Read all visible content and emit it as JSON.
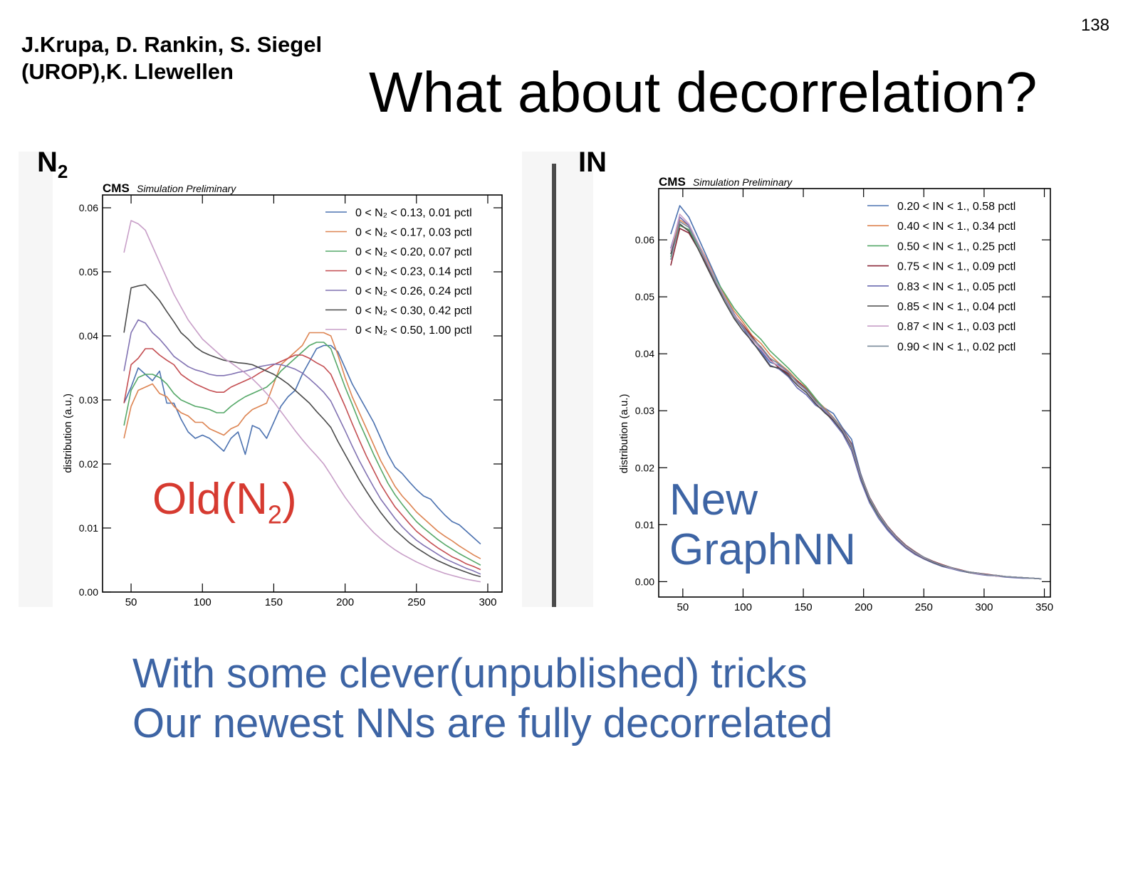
{
  "page_number": "138",
  "authors": [
    "J.Krupa, D. Rankin, S. Siegel",
    "(UROP),K. Llewellen"
  ],
  "title": "What about decorrelation?",
  "left_panel": {
    "label_main": "N",
    "label_sub": "2",
    "caption_main": "Old(N",
    "caption_sub": "2",
    "caption_end": ")"
  },
  "right_panel": {
    "label": "IN",
    "caption": [
      "New",
      "GraphNN"
    ]
  },
  "bottom_text": [
    "With some clever(unpublished) tricks",
    "Our newest NNs are fully decorrelated"
  ],
  "chart_data": [
    {
      "type": "line",
      "header_bold": "CMS",
      "header_italic": "Simulation Preliminary",
      "ylabel": "distribution (a.u.)",
      "xlabel": "",
      "xlim": [
        30,
        310
      ],
      "ylim": [
        0,
        0.062
      ],
      "xticks": [
        50,
        100,
        150,
        200,
        250,
        300
      ],
      "yticks": [
        0.0,
        0.01,
        0.02,
        0.03,
        0.04,
        0.05,
        0.06
      ],
      "ytick_labels": [
        "0.00",
        "0.01",
        "0.02",
        "0.03",
        "0.04",
        "0.05",
        "0.06"
      ],
      "legend_position": "top-right",
      "x": [
        45,
        50,
        55,
        60,
        65,
        70,
        75,
        80,
        85,
        90,
        95,
        100,
        105,
        110,
        115,
        120,
        125,
        130,
        135,
        140,
        145,
        150,
        155,
        160,
        165,
        170,
        175,
        180,
        185,
        190,
        195,
        200,
        205,
        210,
        215,
        220,
        225,
        230,
        235,
        240,
        245,
        250,
        255,
        260,
        265,
        270,
        275,
        280,
        285,
        290,
        295
      ],
      "series": [
        {
          "name": "0 < N₂ < 0.13, 0.01 pctl",
          "color": "#4c72b0",
          "values": [
            0.0295,
            0.032,
            0.035,
            0.034,
            0.033,
            0.0345,
            0.0295,
            0.0295,
            0.027,
            0.025,
            0.024,
            0.0245,
            0.024,
            0.023,
            0.022,
            0.024,
            0.025,
            0.0215,
            0.026,
            0.0255,
            0.024,
            0.0265,
            0.029,
            0.0305,
            0.0315,
            0.034,
            0.036,
            0.038,
            0.0385,
            0.0385,
            0.0375,
            0.035,
            0.0325,
            0.0305,
            0.0285,
            0.0265,
            0.024,
            0.0215,
            0.0195,
            0.0185,
            0.0172,
            0.016,
            0.015,
            0.0145,
            0.0132,
            0.012,
            0.011,
            0.0105,
            0.0095,
            0.0085,
            0.0075
          ]
        },
        {
          "name": "0 < N₂ < 0.17, 0.03 pctl",
          "color": "#dd8452",
          "values": [
            0.024,
            0.029,
            0.0315,
            0.032,
            0.0325,
            0.031,
            0.0305,
            0.029,
            0.028,
            0.0275,
            0.0265,
            0.0265,
            0.0255,
            0.025,
            0.0245,
            0.0255,
            0.026,
            0.0275,
            0.0285,
            0.029,
            0.0295,
            0.0325,
            0.0355,
            0.0365,
            0.0375,
            0.0385,
            0.0405,
            0.0405,
            0.0405,
            0.04,
            0.037,
            0.0335,
            0.0305,
            0.028,
            0.0255,
            0.023,
            0.0205,
            0.0185,
            0.0165,
            0.015,
            0.0138,
            0.0125,
            0.0115,
            0.0105,
            0.0095,
            0.0087,
            0.008,
            0.0072,
            0.0065,
            0.0058,
            0.0052
          ]
        },
        {
          "name": "0 < N₂ < 0.20, 0.07 pctl",
          "color": "#55a868",
          "values": [
            0.026,
            0.0315,
            0.0335,
            0.034,
            0.034,
            0.0335,
            0.0325,
            0.031,
            0.03,
            0.0295,
            0.029,
            0.0288,
            0.0285,
            0.028,
            0.028,
            0.029,
            0.0298,
            0.0305,
            0.031,
            0.0315,
            0.032,
            0.033,
            0.0345,
            0.0355,
            0.0365,
            0.0375,
            0.0385,
            0.039,
            0.039,
            0.038,
            0.035,
            0.032,
            0.0293,
            0.0265,
            0.024,
            0.0215,
            0.0192,
            0.017,
            0.0152,
            0.0137,
            0.0123,
            0.011,
            0.01,
            0.0091,
            0.0082,
            0.0074,
            0.0067,
            0.006,
            0.0054,
            0.0048,
            0.0042
          ]
        },
        {
          "name": "0 < N₂ < 0.23, 0.14 pctl",
          "color": "#c44e52",
          "values": [
            0.0295,
            0.0355,
            0.0365,
            0.038,
            0.038,
            0.037,
            0.0362,
            0.0355,
            0.034,
            0.0332,
            0.0325,
            0.032,
            0.0315,
            0.0312,
            0.0312,
            0.032,
            0.0325,
            0.033,
            0.0335,
            0.0342,
            0.0348,
            0.0355,
            0.036,
            0.0365,
            0.037,
            0.037,
            0.0365,
            0.0358,
            0.0352,
            0.034,
            0.0315,
            0.029,
            0.0263,
            0.0237,
            0.0212,
            0.019,
            0.0168,
            0.015,
            0.0133,
            0.012,
            0.0107,
            0.0095,
            0.0086,
            0.0077,
            0.0069,
            0.0062,
            0.0055,
            0.005,
            0.0044,
            0.004,
            0.0035
          ]
        },
        {
          "name": "0 < N₂ < 0.26, 0.24 pctl",
          "color": "#8172b2",
          "values": [
            0.0345,
            0.0405,
            0.0425,
            0.042,
            0.0405,
            0.0395,
            0.0382,
            0.0368,
            0.036,
            0.0352,
            0.0347,
            0.0344,
            0.034,
            0.0338,
            0.0338,
            0.034,
            0.0343,
            0.0345,
            0.0348,
            0.0352,
            0.0354,
            0.0356,
            0.0355,
            0.0352,
            0.0348,
            0.0342,
            0.0333,
            0.0323,
            0.0312,
            0.0298,
            0.0275,
            0.0252,
            0.0228,
            0.0205,
            0.0184,
            0.0164,
            0.0145,
            0.013,
            0.0115,
            0.0102,
            0.0091,
            0.0081,
            0.0073,
            0.0066,
            0.0059,
            0.0052,
            0.0047,
            0.0042,
            0.0037,
            0.0033,
            0.0028
          ]
        },
        {
          "name": "0 < N₂ < 0.30, 0.42 pctl",
          "color": "#4a4a4a",
          "values": [
            0.0405,
            0.0475,
            0.0478,
            0.048,
            0.0468,
            0.0455,
            0.0438,
            0.0422,
            0.0405,
            0.0395,
            0.0383,
            0.0375,
            0.037,
            0.0366,
            0.0362,
            0.036,
            0.0358,
            0.0357,
            0.0355,
            0.035,
            0.0345,
            0.034,
            0.0333,
            0.0325,
            0.0315,
            0.0305,
            0.0295,
            0.0282,
            0.027,
            0.0257,
            0.0235,
            0.0215,
            0.0195,
            0.0175,
            0.0157,
            0.014,
            0.0124,
            0.011,
            0.0097,
            0.0087,
            0.0077,
            0.0069,
            0.0062,
            0.0055,
            0.0049,
            0.0044,
            0.0039,
            0.0035,
            0.0031,
            0.0027,
            0.0024
          ]
        },
        {
          "name": "0 < N₂ < 0.50, 1.00 pctl",
          "color": "#c89fc8",
          "values": [
            0.053,
            0.058,
            0.0575,
            0.0565,
            0.054,
            0.0515,
            0.049,
            0.0465,
            0.0445,
            0.0425,
            0.041,
            0.0395,
            0.0385,
            0.0375,
            0.0365,
            0.0358,
            0.035,
            0.0342,
            0.0333,
            0.0322,
            0.031,
            0.0297,
            0.0282,
            0.0267,
            0.0252,
            0.0238,
            0.0225,
            0.0213,
            0.02,
            0.0183,
            0.0165,
            0.0148,
            0.0133,
            0.0118,
            0.0105,
            0.0093,
            0.0083,
            0.0074,
            0.0066,
            0.0059,
            0.0053,
            0.0047,
            0.0042,
            0.0037,
            0.0033,
            0.0029,
            0.0026,
            0.0023,
            0.002,
            0.0018,
            0.0016
          ]
        }
      ]
    },
    {
      "type": "line",
      "header_bold": "CMS",
      "header_italic": "Simulation Preliminary",
      "ylabel": "distribution (a.u.)",
      "xlabel": "",
      "xlim": [
        30,
        355
      ],
      "ylim": [
        -0.0027,
        0.069
      ],
      "xticks": [
        50,
        100,
        150,
        200,
        250,
        300,
        350
      ],
      "yticks": [
        0.0,
        0.01,
        0.02,
        0.03,
        0.04,
        0.05,
        0.06
      ],
      "ytick_labels": [
        "0.00",
        "0.01",
        "0.02",
        "0.03",
        "0.04",
        "0.05",
        "0.06"
      ],
      "legend_position": "top-right",
      "x": [
        40,
        47.5,
        55,
        62.5,
        70,
        77.5,
        85,
        92.5,
        100,
        107.5,
        115,
        122.5,
        130,
        137.5,
        145,
        152.5,
        160,
        167.5,
        175,
        182.5,
        190,
        197.5,
        205,
        212.5,
        220,
        227.5,
        235,
        242.5,
        250,
        257.5,
        265,
        272.5,
        280,
        287.5,
        295,
        302.5,
        310,
        317.5,
        325,
        332.5,
        340,
        347.5
      ],
      "series": [
        {
          "name": "0.20 < IN < 1., 0.58 pctl",
          "color": "#4c72b0",
          "values": [
            0.061,
            0.066,
            0.064,
            0.0605,
            0.057,
            0.0535,
            0.05,
            0.047,
            0.0445,
            0.042,
            0.0405,
            0.0385,
            0.038,
            0.0365,
            0.035,
            0.0335,
            0.032,
            0.0305,
            0.0295,
            0.027,
            0.025,
            0.019,
            0.0145,
            0.0115,
            0.0092,
            0.0074,
            0.006,
            0.0049,
            0.004,
            0.0033,
            0.0027,
            0.0023,
            0.0019,
            0.0016,
            0.0014,
            0.0012,
            0.0011,
            0.0009,
            0.0008,
            0.0007,
            0.0006,
            0.0005
          ]
        },
        {
          "name": "0.40 < IN < 1., 0.34 pctl",
          "color": "#dd8452",
          "values": [
            0.058,
            0.0635,
            0.0625,
            0.0595,
            0.0565,
            0.053,
            0.0502,
            0.0475,
            0.0455,
            0.0432,
            0.0418,
            0.0398,
            0.0383,
            0.037,
            0.0353,
            0.034,
            0.032,
            0.0305,
            0.0288,
            0.0268,
            0.024,
            0.0185,
            0.0145,
            0.0118,
            0.0096,
            0.0078,
            0.0063,
            0.0052,
            0.0043,
            0.0035,
            0.003,
            0.0025,
            0.002,
            0.0017,
            0.0015,
            0.0012,
            0.0011,
            0.0009,
            0.0008,
            0.0007,
            0.0006,
            0.0005
          ]
        },
        {
          "name": "0.50 < IN < 1., 0.25 pctl",
          "color": "#55a868",
          "values": [
            0.057,
            0.0625,
            0.0618,
            0.059,
            0.056,
            0.053,
            0.0505,
            0.048,
            0.046,
            0.044,
            0.0425,
            0.0405,
            0.039,
            0.0375,
            0.0358,
            0.0342,
            0.0322,
            0.0303,
            0.0283,
            0.0265,
            0.0235,
            0.0182,
            0.0142,
            0.0115,
            0.0094,
            0.0077,
            0.0062,
            0.0051,
            0.0042,
            0.0035,
            0.0029,
            0.0024,
            0.002,
            0.0017,
            0.0014,
            0.0012,
            0.001,
            0.0009,
            0.0008,
            0.0007,
            0.0006,
            0.0005
          ]
        },
        {
          "name": "0.75 < IN < 1., 0.09 pctl",
          "color": "#8b2a3a",
          "values": [
            0.0555,
            0.062,
            0.0612,
            0.0585,
            0.0555,
            0.0522,
            0.0495,
            0.0468,
            0.045,
            0.043,
            0.041,
            0.039,
            0.0375,
            0.0365,
            0.0352,
            0.0338,
            0.0318,
            0.03,
            0.0285,
            0.0268,
            0.0242,
            0.0188,
            0.0148,
            0.012,
            0.0097,
            0.0079,
            0.0064,
            0.0053,
            0.0043,
            0.0036,
            0.003,
            0.0025,
            0.0021,
            0.0017,
            0.0015,
            0.0013,
            0.0011,
            0.0009,
            0.0008,
            0.0007,
            0.0006,
            0.0005
          ]
        },
        {
          "name": "0.83 < IN < 1., 0.05 pctl",
          "color": "#6b6bb0",
          "values": [
            0.0585,
            0.064,
            0.0625,
            0.0592,
            0.056,
            0.0525,
            0.0495,
            0.0465,
            0.0445,
            0.042,
            0.0403,
            0.038,
            0.0373,
            0.036,
            0.034,
            0.0328,
            0.031,
            0.03,
            0.028,
            0.026,
            0.023,
            0.0178,
            0.0138,
            0.0111,
            0.009,
            0.0073,
            0.0059,
            0.0048,
            0.004,
            0.0033,
            0.0027,
            0.0023,
            0.0019,
            0.0016,
            0.0013,
            0.0011,
            0.001,
            0.0008,
            0.0007,
            0.0006,
            0.0006,
            0.0005
          ]
        },
        {
          "name": "0.85 < IN < 1., 0.04 pctl",
          "color": "#4a4a4a",
          "values": [
            0.0575,
            0.0628,
            0.0615,
            0.0585,
            0.0552,
            0.052,
            0.049,
            0.0462,
            0.044,
            0.0422,
            0.04,
            0.0378,
            0.0375,
            0.0362,
            0.0345,
            0.0332,
            0.0313,
            0.0297,
            0.0283,
            0.0263,
            0.0236,
            0.0184,
            0.0143,
            0.0116,
            0.0094,
            0.0076,
            0.0061,
            0.005,
            0.0041,
            0.0034,
            0.0028,
            0.0024,
            0.002,
            0.0016,
            0.0014,
            0.0012,
            0.001,
            0.0009,
            0.0008,
            0.0007,
            0.0006,
            0.0005
          ]
        },
        {
          "name": "0.87 < IN < 1., 0.03 pctl",
          "color": "#c89fc8",
          "values": [
            0.058,
            0.0645,
            0.0628,
            0.0595,
            0.0562,
            0.0528,
            0.0498,
            0.0468,
            0.0448,
            0.0425,
            0.0408,
            0.0388,
            0.0378,
            0.0368,
            0.0348,
            0.0336,
            0.0316,
            0.0302,
            0.0286,
            0.0266,
            0.0238,
            0.0186,
            0.0146,
            0.0118,
            0.0095,
            0.0077,
            0.0062,
            0.0051,
            0.0042,
            0.0035,
            0.0029,
            0.0024,
            0.002,
            0.0017,
            0.0014,
            0.0012,
            0.001,
            0.0009,
            0.0008,
            0.0007,
            0.0006,
            0.0005
          ]
        },
        {
          "name": "0.90 < IN < 1., 0.02 pctl",
          "color": "#7a8a9a",
          "values": [
            0.0565,
            0.0632,
            0.0622,
            0.0592,
            0.0558,
            0.0525,
            0.0495,
            0.0465,
            0.0447,
            0.0427,
            0.0412,
            0.0392,
            0.0382,
            0.0368,
            0.035,
            0.0337,
            0.0317,
            0.0303,
            0.0287,
            0.0267,
            0.024,
            0.0187,
            0.0147,
            0.0119,
            0.0096,
            0.0078,
            0.0063,
            0.0052,
            0.0043,
            0.0035,
            0.0029,
            0.0025,
            0.002,
            0.0017,
            0.0015,
            0.0012,
            0.0011,
            0.0009,
            0.0008,
            0.0007,
            0.0006,
            0.0005
          ]
        }
      ]
    }
  ]
}
